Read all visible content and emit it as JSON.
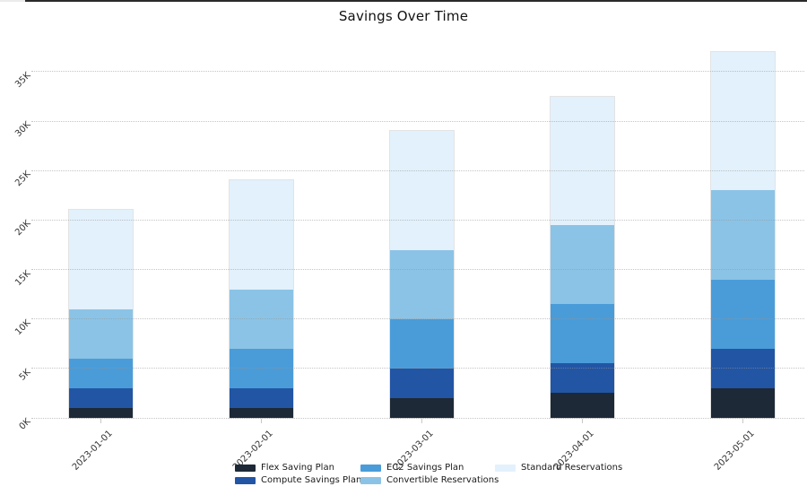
{
  "chart_data": {
    "type": "bar",
    "stacked": true,
    "title": "Savings Over Time",
    "categories": [
      "2023-01-01",
      "2023-02-01",
      "2023-03-01",
      "2023-04-01",
      "2023-05-01"
    ],
    "series": [
      {
        "name": "Flex Saving Plan",
        "color": "#1d2936",
        "values": [
          1000,
          1000,
          2000,
          2500,
          3000
        ]
      },
      {
        "name": "Compute Savings Plan",
        "color": "#2255a4",
        "values": [
          2000,
          2000,
          3000,
          3000,
          4000
        ]
      },
      {
        "name": "EC2 Savings Plan",
        "color": "#4a9cd9",
        "values": [
          3000,
          4000,
          5000,
          6000,
          7000
        ]
      },
      {
        "name": "Convertible Reservations",
        "color": "#8bc3e6",
        "values": [
          5000,
          6000,
          7000,
          8000,
          9000
        ]
      },
      {
        "name": "Standard Reservations",
        "color": "#e2f1fc",
        "values": [
          10000,
          11000,
          12000,
          13000,
          14000
        ]
      }
    ],
    "totals": [
      21000,
      24000,
      29000,
      32500,
      37000
    ],
    "y_ticks": [
      {
        "value": 0,
        "label": "0K"
      },
      {
        "value": 5000,
        "label": "5K"
      },
      {
        "value": 10000,
        "label": "10K"
      },
      {
        "value": 15000,
        "label": "15K"
      },
      {
        "value": 20000,
        "label": "20K"
      },
      {
        "value": 25000,
        "label": "25K"
      },
      {
        "value": 30000,
        "label": "30K"
      },
      {
        "value": 35000,
        "label": "35K"
      }
    ],
    "ylim": [
      0,
      37800
    ],
    "grid": "horizontal-dotted",
    "legend_position": "bottom-center",
    "legend_rows": 2,
    "colors": {
      "background": "#ffffff",
      "gridline": "#d9d9d9",
      "tick_text": "#333333",
      "title_text": "#111111"
    }
  }
}
